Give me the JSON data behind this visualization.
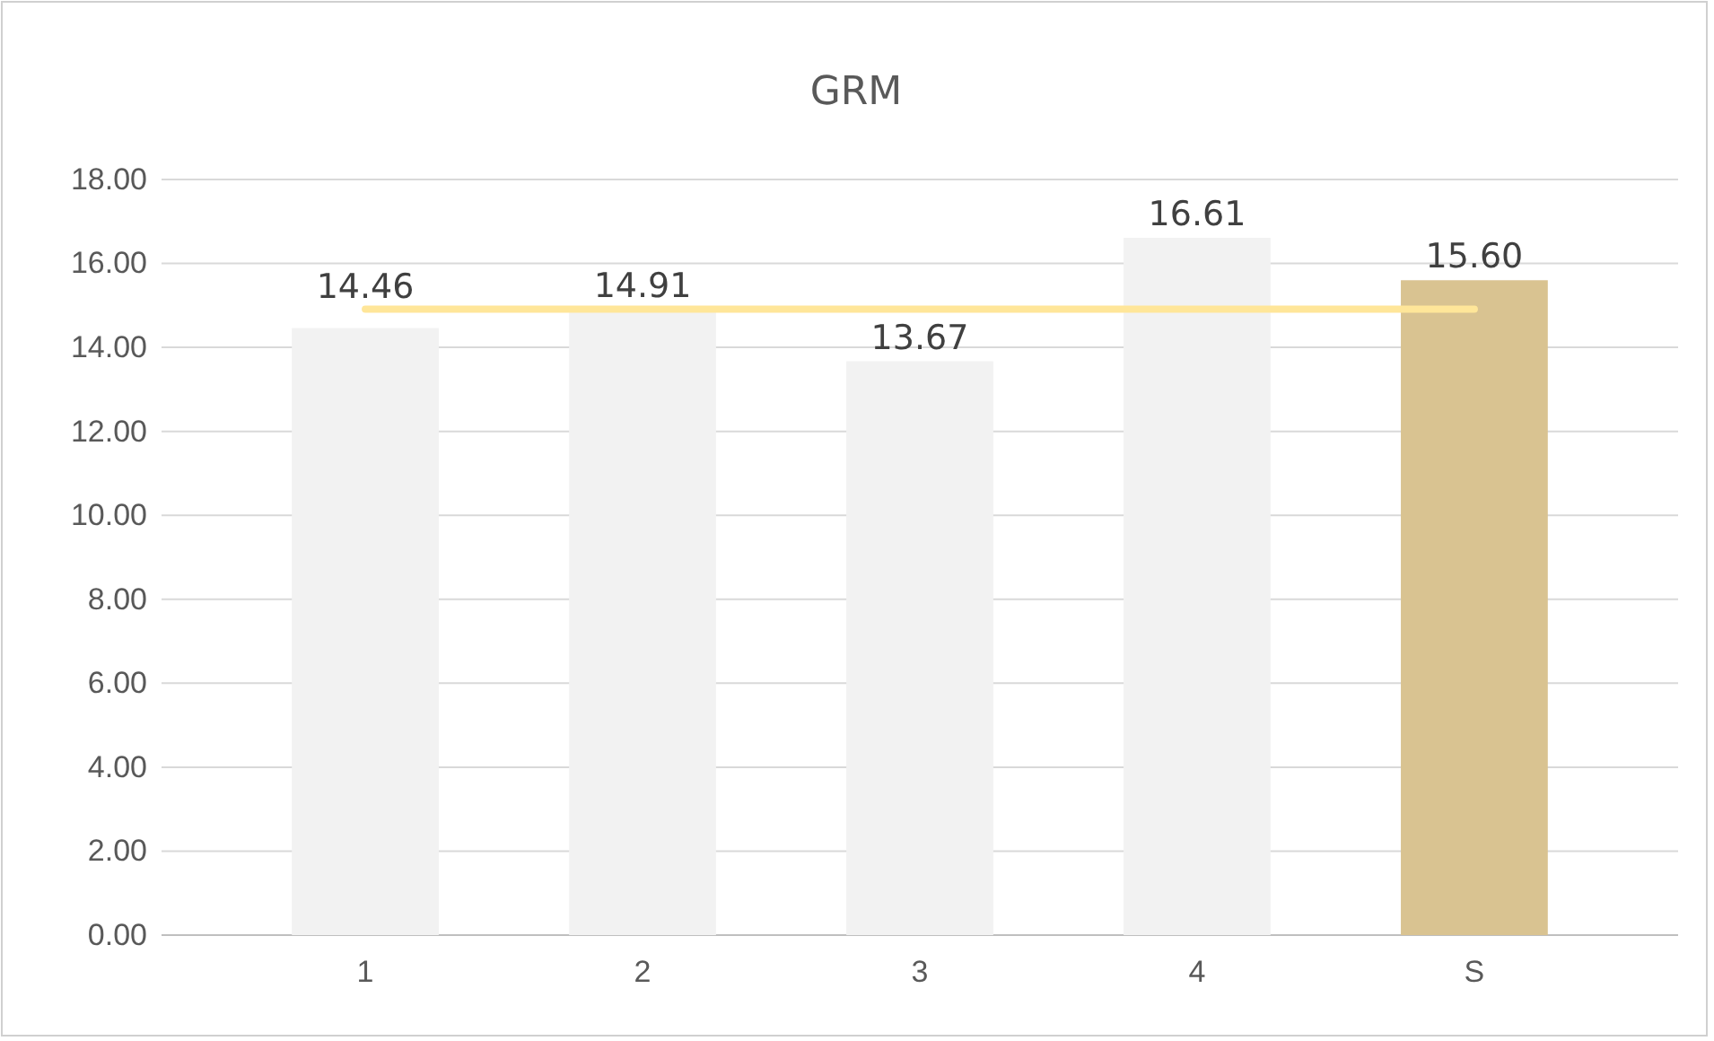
{
  "chart_data": {
    "type": "bar",
    "title": "GRM",
    "categories": [
      "1",
      "2",
      "3",
      "4",
      "S"
    ],
    "series": [
      {
        "colors": [
          "#f2f2f2",
          "#f2f2f2",
          "#f2f2f2",
          "#f2f2f2",
          "#d9c391"
        ],
        "values": [
          14.46,
          14.91,
          13.67,
          16.61,
          15.6
        ],
        "value_labels": [
          "14.46",
          "14.91",
          "13.67",
          "16.61",
          "15.60"
        ]
      },
      {
        "type": "line",
        "color": "#ffe699",
        "values": [
          14.91,
          14.91,
          14.91,
          14.91,
          14.91
        ]
      }
    ],
    "ylim": [
      0,
      18
    ],
    "yticks": [
      {
        "value": 0,
        "label": "0.00"
      },
      {
        "value": 2,
        "label": "2.00"
      },
      {
        "value": 4,
        "label": "4.00"
      },
      {
        "value": 6,
        "label": "6.00"
      },
      {
        "value": 8,
        "label": "8.00"
      },
      {
        "value": 10,
        "label": "10.00"
      },
      {
        "value": 12,
        "label": "12.00"
      },
      {
        "value": 14,
        "label": "14.00"
      },
      {
        "value": 16,
        "label": "16.00"
      },
      {
        "value": 18,
        "label": "18.00"
      }
    ],
    "grid": "y"
  }
}
